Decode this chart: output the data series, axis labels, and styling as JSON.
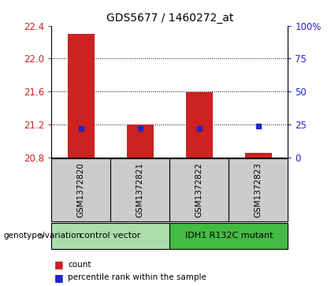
{
  "title": "GDS5677 / 1460272_at",
  "samples": [
    "GSM1372820",
    "GSM1372821",
    "GSM1372822",
    "GSM1372823"
  ],
  "bar_values": [
    22.305,
    21.2,
    21.595,
    20.855
  ],
  "percentile_values": [
    21.15,
    21.15,
    21.15,
    21.18
  ],
  "ylim": [
    20.8,
    22.4
  ],
  "yticks": [
    20.8,
    21.2,
    21.6,
    22.0,
    22.4
  ],
  "right_yticks": [
    0,
    25,
    50,
    75,
    100
  ],
  "right_ylabels": [
    "0",
    "25",
    "50",
    "75",
    "100%"
  ],
  "bar_color": "#cc2222",
  "dot_color": "#2222cc",
  "bar_bottom": 20.8,
  "groups": [
    {
      "label": "control vector",
      "samples": [
        0,
        1
      ],
      "color": "#aaddaa"
    },
    {
      "label": "IDH1 R132C mutant",
      "samples": [
        2,
        3
      ],
      "color": "#44bb44"
    }
  ],
  "group_row_label": "genotype/variation",
  "legend_count_label": "count",
  "legend_pct_label": "percentile rank within the sample",
  "left_axis_color": "#cc2222",
  "right_axis_color": "#2222cc",
  "sample_box_color": "#cccccc"
}
